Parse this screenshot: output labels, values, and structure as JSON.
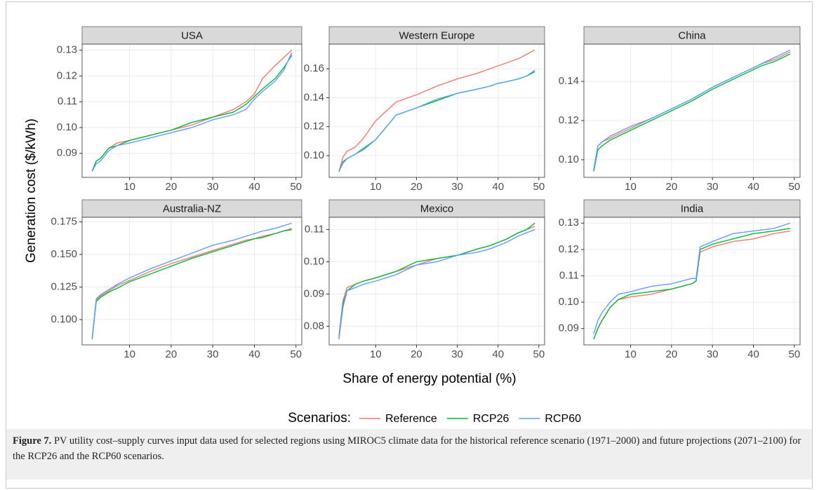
{
  "y_axis_label": "Generation cost ($/kWh)",
  "x_axis_label": "Share of energy potential (%)",
  "legend_title": "Scenarios:",
  "caption": {
    "label": "Figure 7.",
    "text": "PV utility cost–supply curves input data used for selected regions using MIROC5 climate data for the historical reference scenario (1971–2000) and future projections (2071–2100) for the RCP26 and the RCP60 scenarios."
  },
  "chart_data": [
    {
      "type": "line",
      "title": "USA",
      "x": [
        1,
        2,
        3,
        5,
        7,
        10,
        15,
        20,
        25,
        30,
        35,
        38,
        40,
        42,
        45,
        47,
        49
      ],
      "xlim": [
        -1.4,
        51.4
      ],
      "xticks": [
        10,
        20,
        30,
        40,
        50
      ],
      "ylim": [
        0.0807,
        0.1323
      ],
      "yticks": [
        0.09,
        {
          "value": 0.1,
          "label": "0.10"
        },
        0.11,
        0.12,
        0.13
      ],
      "grid": true,
      "series": [
        {
          "name": "Reference",
          "color": "#F8766D",
          "values": [
            0.083,
            0.087,
            0.088,
            0.092,
            0.094,
            0.095,
            0.097,
            0.099,
            0.101,
            0.104,
            0.107,
            0.11,
            0.113,
            0.119,
            0.124,
            0.127,
            0.13
          ]
        },
        {
          "name": "RCP26",
          "color": "#00BA38",
          "values": [
            0.083,
            0.087,
            0.088,
            0.092,
            0.093,
            0.095,
            0.097,
            0.099,
            0.102,
            0.104,
            0.106,
            0.109,
            0.112,
            0.115,
            0.119,
            0.123,
            0.128
          ]
        },
        {
          "name": "RCP60",
          "color": "#619CFF",
          "values": [
            0.083,
            0.086,
            0.087,
            0.091,
            0.093,
            0.094,
            0.096,
            0.098,
            0.1,
            0.103,
            0.105,
            0.107,
            0.111,
            0.114,
            0.118,
            0.122,
            0.129
          ]
        }
      ]
    },
    {
      "type": "line",
      "title": "Western Europe",
      "x": [
        1,
        2,
        3,
        5,
        7,
        10,
        15,
        20,
        25,
        30,
        35,
        38,
        40,
        42,
        45,
        47,
        49
      ],
      "xlim": [
        -1.4,
        51.4
      ],
      "xticks": [
        10,
        20,
        30,
        40,
        50
      ],
      "ylim": [
        0.085,
        0.177
      ],
      "yticks": [
        {
          "value": 0.1,
          "label": "0.10"
        },
        0.12,
        0.14,
        0.16
      ],
      "grid": true,
      "series": [
        {
          "name": "Reference",
          "color": "#F8766D",
          "values": [
            0.089,
            0.099,
            0.103,
            0.106,
            0.112,
            0.124,
            0.137,
            0.142,
            0.148,
            0.153,
            0.157,
            0.16,
            0.162,
            0.164,
            0.167,
            0.17,
            0.173
          ]
        },
        {
          "name": "RCP26",
          "color": "#00BA38",
          "values": [
            0.089,
            0.095,
            0.098,
            0.101,
            0.105,
            0.111,
            0.128,
            0.133,
            0.138,
            0.143,
            0.146,
            0.148,
            0.15,
            0.151,
            0.153,
            0.155,
            0.158
          ]
        },
        {
          "name": "RCP60",
          "color": "#619CFF",
          "values": [
            0.089,
            0.096,
            0.098,
            0.101,
            0.104,
            0.111,
            0.128,
            0.133,
            0.139,
            0.143,
            0.146,
            0.148,
            0.15,
            0.151,
            0.153,
            0.155,
            0.159
          ]
        }
      ]
    },
    {
      "type": "line",
      "title": "China",
      "x": [
        1,
        2,
        3,
        5,
        7,
        10,
        15,
        20,
        25,
        30,
        35,
        38,
        40,
        42,
        45,
        47,
        49
      ],
      "xlim": [
        -1.4,
        51.4
      ],
      "xticks": [
        10,
        20,
        30,
        40,
        50
      ],
      "ylim": [
        0.091,
        0.159
      ],
      "yticks": [
        {
          "value": 0.1,
          "label": "0.10"
        },
        0.12,
        0.14
      ],
      "grid": true,
      "series": [
        {
          "name": "Reference",
          "color": "#F8766D",
          "values": [
            0.095,
            0.107,
            0.109,
            0.111,
            0.113,
            0.116,
            0.121,
            0.126,
            0.131,
            0.137,
            0.142,
            0.145,
            0.147,
            0.149,
            0.151,
            0.153,
            0.155
          ]
        },
        {
          "name": "RCP26",
          "color": "#00BA38",
          "values": [
            0.094,
            0.105,
            0.107,
            0.11,
            0.112,
            0.115,
            0.12,
            0.125,
            0.13,
            0.136,
            0.141,
            0.144,
            0.146,
            0.148,
            0.15,
            0.152,
            0.154
          ]
        },
        {
          "name": "RCP60",
          "color": "#619CFF",
          "values": [
            0.095,
            0.107,
            0.109,
            0.112,
            0.114,
            0.117,
            0.121,
            0.126,
            0.131,
            0.137,
            0.142,
            0.145,
            0.147,
            0.149,
            0.152,
            0.154,
            0.156
          ]
        }
      ]
    },
    {
      "type": "line",
      "title": "Australia-NZ",
      "x": [
        1,
        2,
        3,
        5,
        7,
        10,
        15,
        20,
        25,
        30,
        35,
        38,
        40,
        42,
        45,
        47,
        49
      ],
      "xlim": [
        -1.4,
        51.4
      ],
      "xticks": [
        10,
        20,
        30,
        40,
        50
      ],
      "ylim": [
        0.0806,
        0.1785
      ],
      "yticks": [
        {
          "value": 0.1,
          "label": "0.100"
        },
        0.125,
        {
          "value": 0.15,
          "label": "0.150"
        },
        0.175
      ],
      "grid": true,
      "series": [
        {
          "name": "Reference",
          "color": "#F8766D",
          "values": [
            0.085,
            0.115,
            0.118,
            0.122,
            0.126,
            0.13,
            0.137,
            0.143,
            0.148,
            0.153,
            0.158,
            0.161,
            0.162,
            0.164,
            0.166,
            0.168,
            0.17
          ]
        },
        {
          "name": "RCP26",
          "color": "#00BA38",
          "values": [
            0.085,
            0.114,
            0.117,
            0.121,
            0.124,
            0.129,
            0.135,
            0.141,
            0.147,
            0.152,
            0.157,
            0.16,
            0.162,
            0.163,
            0.166,
            0.168,
            0.169
          ]
        },
        {
          "name": "RCP60",
          "color": "#619CFF",
          "values": [
            0.085,
            0.116,
            0.119,
            0.123,
            0.127,
            0.132,
            0.139,
            0.145,
            0.151,
            0.157,
            0.161,
            0.164,
            0.166,
            0.168,
            0.17,
            0.172,
            0.174
          ]
        }
      ]
    },
    {
      "type": "line",
      "title": "Mexico",
      "x": [
        1,
        2,
        3,
        5,
        7,
        10,
        15,
        20,
        25,
        30,
        35,
        38,
        40,
        42,
        45,
        47,
        49
      ],
      "xlim": [
        -1.4,
        51.4
      ],
      "xticks": [
        10,
        20,
        30,
        40,
        50
      ],
      "ylim": [
        0.0742,
        0.1138
      ],
      "yticks": [
        0.08,
        0.09,
        {
          "value": 0.1,
          "label": "0.10"
        },
        0.11
      ],
      "grid": true,
      "series": [
        {
          "name": "Reference",
          "color": "#F8766D",
          "values": [
            0.077,
            0.088,
            0.092,
            0.093,
            0.094,
            0.095,
            0.097,
            0.099,
            0.101,
            0.102,
            0.104,
            0.105,
            0.106,
            0.107,
            0.109,
            0.11,
            0.111
          ]
        },
        {
          "name": "RCP26",
          "color": "#00BA38",
          "values": [
            0.076,
            0.087,
            0.091,
            0.093,
            0.094,
            0.095,
            0.097,
            0.1,
            0.101,
            0.102,
            0.104,
            0.105,
            0.106,
            0.107,
            0.109,
            0.11,
            0.112
          ]
        },
        {
          "name": "RCP60",
          "color": "#619CFF",
          "values": [
            0.076,
            0.086,
            0.091,
            0.092,
            0.093,
            0.094,
            0.096,
            0.099,
            0.1,
            0.102,
            0.103,
            0.104,
            0.105,
            0.106,
            0.108,
            0.109,
            0.11
          ]
        }
      ]
    },
    {
      "type": "line",
      "title": "India",
      "x": [
        1,
        2,
        3,
        5,
        7,
        10,
        15,
        20,
        25,
        26,
        27,
        30,
        35,
        40,
        45,
        49
      ],
      "xlim": [
        -1.4,
        51.4
      ],
      "xticks": [
        10,
        20,
        30,
        40,
        50
      ],
      "ylim": [
        0.0838,
        0.1322
      ],
      "yticks": [
        0.09,
        {
          "value": 0.1,
          "label": "0.10"
        },
        0.11,
        0.12,
        0.13
      ],
      "grid": true,
      "series": [
        {
          "name": "Reference",
          "color": "#F8766D",
          "values": [
            0.086,
            0.09,
            0.093,
            0.098,
            0.101,
            0.102,
            0.103,
            0.105,
            0.107,
            0.108,
            0.119,
            0.121,
            0.123,
            0.124,
            0.126,
            0.127
          ]
        },
        {
          "name": "RCP26",
          "color": "#00BA38",
          "values": [
            0.086,
            0.09,
            0.093,
            0.098,
            0.101,
            0.103,
            0.104,
            0.105,
            0.107,
            0.108,
            0.12,
            0.122,
            0.124,
            0.126,
            0.127,
            0.128
          ]
        },
        {
          "name": "RCP60",
          "color": "#619CFF",
          "values": [
            0.088,
            0.093,
            0.096,
            0.1,
            0.103,
            0.104,
            0.106,
            0.107,
            0.109,
            0.109,
            0.121,
            0.123,
            0.126,
            0.127,
            0.128,
            0.13
          ]
        }
      ]
    }
  ]
}
